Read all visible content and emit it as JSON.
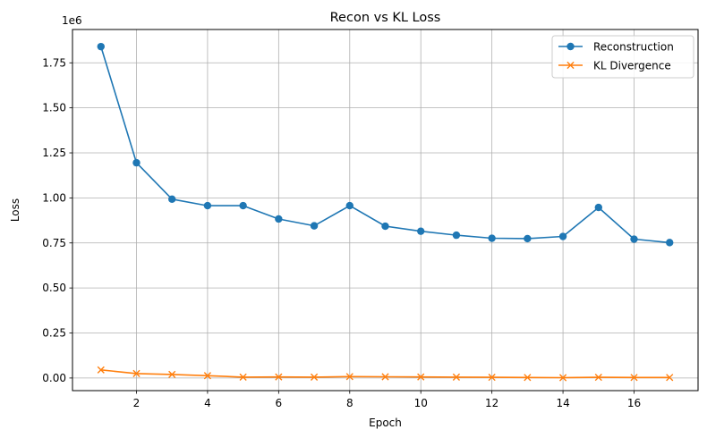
{
  "chart_data": {
    "type": "line",
    "title": "Recon vs KL Loss",
    "xlabel": "Epoch",
    "ylabel": "Loss",
    "y_offset_label": "1e6",
    "y_scale": 1000000,
    "x": [
      1,
      2,
      3,
      4,
      5,
      6,
      7,
      8,
      9,
      10,
      11,
      12,
      13,
      14,
      15,
      16,
      17
    ],
    "xlim": [
      0.2,
      17.8
    ],
    "ylim": [
      -70000,
      1935000
    ],
    "x_ticks": [
      2,
      4,
      6,
      8,
      10,
      12,
      14,
      16
    ],
    "y_ticks": [
      0,
      250000,
      500000,
      750000,
      1000000,
      1250000,
      1500000,
      1750000
    ],
    "x_tick_labels": [
      "2",
      "4",
      "6",
      "8",
      "10",
      "12",
      "14",
      "16"
    ],
    "y_tick_labels": [
      "0.00",
      "0.25",
      "0.50",
      "0.75",
      "1.00",
      "1.25",
      "1.50",
      "1.75"
    ],
    "grid": true,
    "legend_position": "top-right",
    "series": [
      {
        "name": "Reconstruction",
        "color": "#1f77b4",
        "marker": "circle",
        "values": [
          1840000,
          1195000,
          993000,
          957000,
          957000,
          883000,
          845000,
          957000,
          843000,
          815000,
          793000,
          776000,
          774000,
          786000,
          947000,
          771000,
          752000
        ]
      },
      {
        "name": "KL Divergence",
        "color": "#ff7f0e",
        "marker": "x",
        "values": [
          45000,
          25000,
          20000,
          13000,
          5000,
          6000,
          5000,
          8000,
          7000,
          6000,
          5000,
          4000,
          3000,
          2000,
          4000,
          3000,
          3000
        ]
      }
    ]
  }
}
